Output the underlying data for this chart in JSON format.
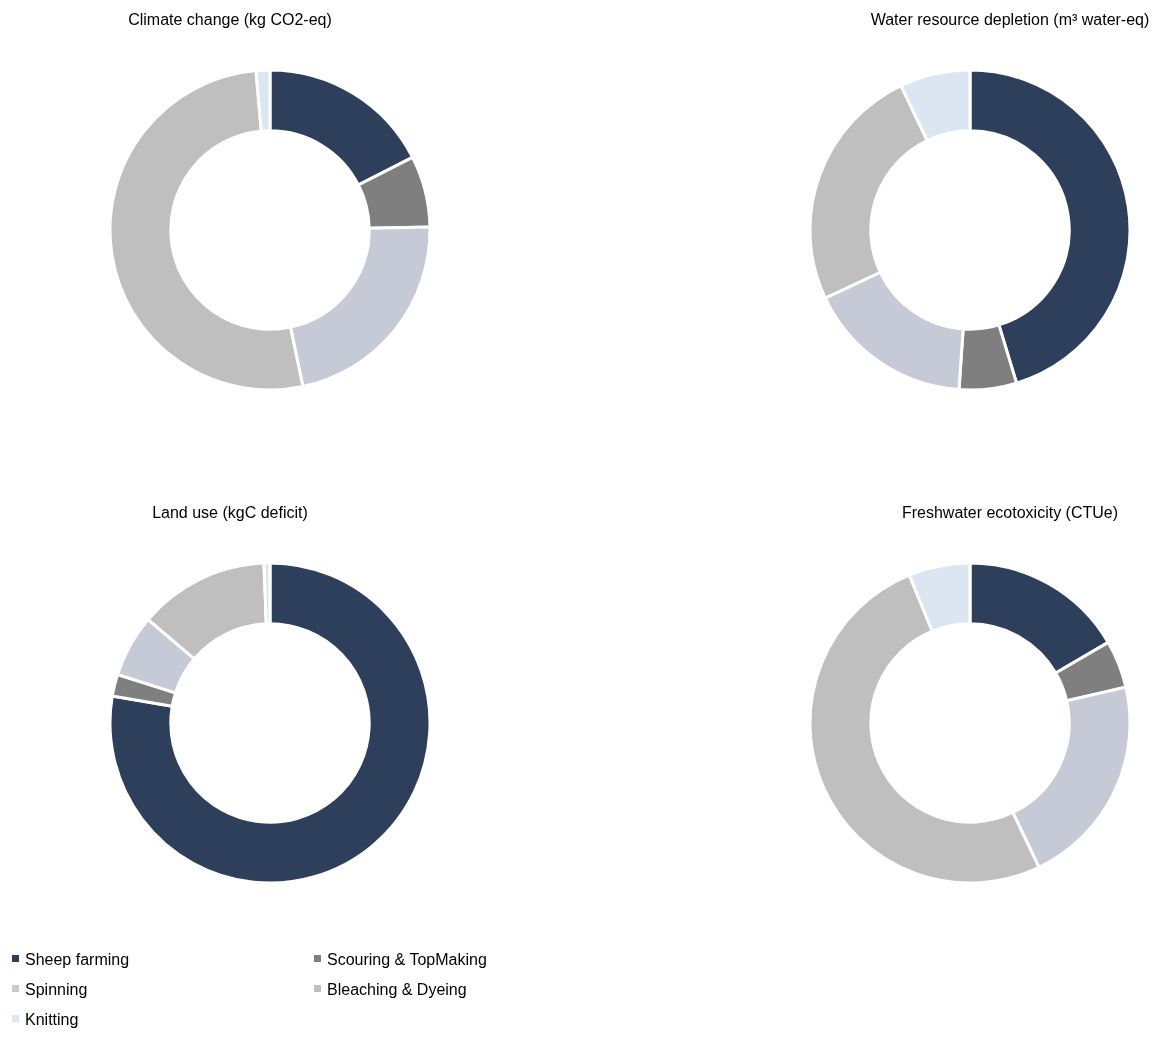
{
  "chart_data": [
    {
      "type": "donut",
      "title": "Climate change (kg CO2-eq)",
      "categories": [
        "Sheep farming",
        "Scouring & TopMaking",
        "Spinning",
        "Bleaching & Dyeing",
        "Knitting"
      ],
      "values": [
        17.5,
        7.2,
        22,
        51.9,
        1.4
      ],
      "colors": [
        "#2e3f5c",
        "#7f7f7f",
        "#c5cad6",
        "#bfbfbf",
        "#dce6f2"
      ],
      "legend": "bottom"
    },
    {
      "type": "donut",
      "title": "Water resource depletion (m³ water-eq)",
      "categories": [
        null,
        null,
        null,
        null,
        null
      ],
      "values": [
        45.3,
        5.8,
        16.9,
        24.9,
        7.1
      ],
      "colors": [
        "#2e3f5c",
        "#7f7f7f",
        "#c5cad6",
        "#bfbfbf",
        "#dce6f2"
      ]
    },
    {
      "type": "donut",
      "title": "Land use (kgC deficit)",
      "categories": [
        null,
        null,
        null,
        null,
        null
      ],
      "values": [
        77.7,
        2.2,
        6.3,
        13.2,
        0.6
      ],
      "colors": [
        "#2e3f5c",
        "#7f7f7f",
        "#c5cad6",
        "#bfbfbf",
        "#dce6f2"
      ]
    },
    {
      "type": "donut",
      "title": "Freshwater ecotoxicity (CTUe)",
      "categories": [
        null,
        null,
        null,
        null,
        null
      ],
      "values": [
        16.6,
        4.8,
        21.5,
        50.9,
        6.2
      ],
      "colors": [
        "#2e3f5c",
        "#7f7f7f",
        "#c5cad6",
        "#bfbfbf",
        "#dce6f2"
      ]
    }
  ]
}
